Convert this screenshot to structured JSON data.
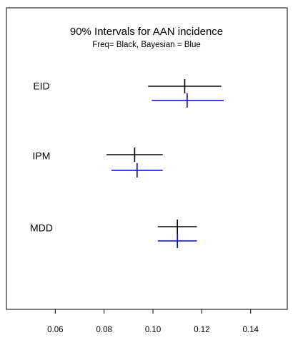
{
  "chart_data": {
    "type": "interval",
    "title": "90% Intervals for AAN incidence",
    "subtitle": "Freq= Black, Bayesian = Blue",
    "xlim": [
      0.04,
      0.155
    ],
    "x_ticks": [
      "0.06",
      "0.08",
      "0.10",
      "0.12",
      "0.14"
    ],
    "x_tick_values": [
      0.06,
      0.08,
      0.1,
      0.12,
      0.14
    ],
    "categories": [
      "EID",
      "IPM",
      "MDD"
    ],
    "series": [
      {
        "name": "Freq",
        "color": "#000000",
        "intervals": [
          {
            "category": "EID",
            "low": 0.098,
            "estimate": 0.113,
            "high": 0.128
          },
          {
            "category": "IPM",
            "low": 0.081,
            "estimate": 0.0925,
            "high": 0.104
          },
          {
            "category": "MDD",
            "low": 0.102,
            "estimate": 0.11,
            "high": 0.118
          }
        ]
      },
      {
        "name": "Bayesian",
        "color": "#0000ee",
        "intervals": [
          {
            "category": "EID",
            "low": 0.0995,
            "estimate": 0.114,
            "high": 0.129
          },
          {
            "category": "IPM",
            "low": 0.083,
            "estimate": 0.0935,
            "high": 0.104
          },
          {
            "category": "MDD",
            "low": 0.102,
            "estimate": 0.11,
            "high": 0.118
          }
        ]
      }
    ],
    "grid": false,
    "legend": "none"
  }
}
